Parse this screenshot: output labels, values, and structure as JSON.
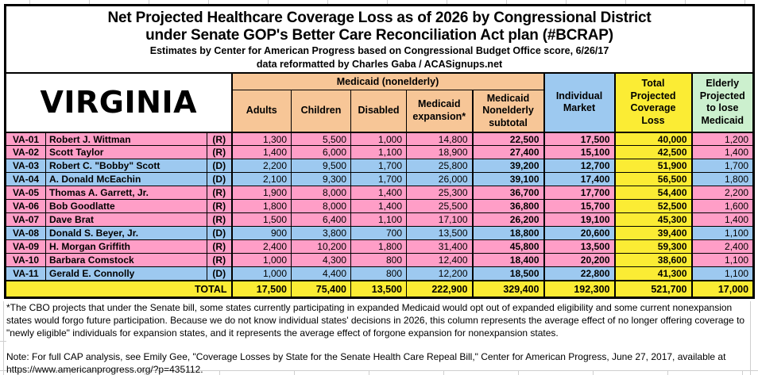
{
  "title": {
    "line1": "Net Projected Healthcare Coverage Loss as of 2026 by Congressional District",
    "line2": "under Senate GOP's Better Care Reconciliation Act plan (#BCRAP)",
    "credit1": "Estimates by Center for American Progress based on Congressional Budget Office score, 6/26/17",
    "credit2": "data reformatted by Charles Gaba / ACASignups.net"
  },
  "state_label": "VIRGINIA",
  "header": {
    "medicaid_group": "Medicaid (nonelderly)",
    "adults": "Adults",
    "children": "Children",
    "disabled": "Disabled",
    "expansion": "Medicaid\nexpansion*",
    "subtotal": "Medicaid\nNonelderly\nsubtotal",
    "individual": "Individual\nMarket",
    "total": "Total\nProjected\nCoverage\nLoss",
    "elderly": "Elderly\nProjected\nto lose\nMedicaid"
  },
  "rows": [
    {
      "district": "VA-01",
      "name": "Robert J. Wittman",
      "party": "(R)",
      "adults": "1,300",
      "children": "5,500",
      "disabled": "1,000",
      "expansion": "14,800",
      "subtotal": "22,500",
      "individual": "17,500",
      "total": "40,000",
      "elderly": "1,200"
    },
    {
      "district": "VA-02",
      "name": "Scott Taylor",
      "party": "(R)",
      "adults": "1,400",
      "children": "6,000",
      "disabled": "1,100",
      "expansion": "18,900",
      "subtotal": "27,400",
      "individual": "15,100",
      "total": "42,500",
      "elderly": "1,400"
    },
    {
      "district": "VA-03",
      "name": "Robert C. \"Bobby\" Scott",
      "party": "(D)",
      "adults": "2,200",
      "children": "9,500",
      "disabled": "1,700",
      "expansion": "25,800",
      "subtotal": "39,200",
      "individual": "12,700",
      "total": "51,900",
      "elderly": "1,700"
    },
    {
      "district": "VA-04",
      "name": "A. Donald McEachin",
      "party": "(D)",
      "adults": "2,100",
      "children": "9,300",
      "disabled": "1,700",
      "expansion": "26,000",
      "subtotal": "39,100",
      "individual": "17,400",
      "total": "56,500",
      "elderly": "1,800"
    },
    {
      "district": "VA-05",
      "name": "Thomas A. Garrett, Jr.",
      "party": "(R)",
      "adults": "1,900",
      "children": "8,000",
      "disabled": "1,400",
      "expansion": "25,300",
      "subtotal": "36,700",
      "individual": "17,700",
      "total": "54,400",
      "elderly": "2,200"
    },
    {
      "district": "VA-06",
      "name": "Bob Goodlatte",
      "party": "(R)",
      "adults": "1,800",
      "children": "8,000",
      "disabled": "1,400",
      "expansion": "25,500",
      "subtotal": "36,800",
      "individual": "15,700",
      "total": "52,500",
      "elderly": "1,600"
    },
    {
      "district": "VA-07",
      "name": "Dave Brat",
      "party": "(R)",
      "adults": "1,500",
      "children": "6,400",
      "disabled": "1,100",
      "expansion": "17,100",
      "subtotal": "26,200",
      "individual": "19,100",
      "total": "45,300",
      "elderly": "1,400"
    },
    {
      "district": "VA-08",
      "name": "Donald S. Beyer, Jr.",
      "party": "(D)",
      "adults": "900",
      "children": "3,800",
      "disabled": "700",
      "expansion": "13,500",
      "subtotal": "18,800",
      "individual": "20,600",
      "total": "39,400",
      "elderly": "1,100"
    },
    {
      "district": "VA-09",
      "name": "H. Morgan Griffith",
      "party": "(R)",
      "adults": "2,400",
      "children": "10,200",
      "disabled": "1,800",
      "expansion": "31,400",
      "subtotal": "45,800",
      "individual": "13,500",
      "total": "59,300",
      "elderly": "2,400"
    },
    {
      "district": "VA-10",
      "name": "Barbara Comstock",
      "party": "(R)",
      "adults": "1,000",
      "children": "4,300",
      "disabled": "800",
      "expansion": "12,400",
      "subtotal": "18,400",
      "individual": "20,200",
      "total": "38,600",
      "elderly": "1,100"
    },
    {
      "district": "VA-11",
      "name": "Gerald E. Connolly",
      "party": "(D)",
      "adults": "1,000",
      "children": "4,400",
      "disabled": "800",
      "expansion": "12,200",
      "subtotal": "18,500",
      "individual": "22,800",
      "total": "41,300",
      "elderly": "1,100"
    }
  ],
  "totals": {
    "label": "TOTAL",
    "adults": "17,500",
    "children": "75,400",
    "disabled": "13,500",
    "expansion": "222,900",
    "subtotal": "329,400",
    "individual": "192,300",
    "total": "521,700",
    "elderly": "17,000"
  },
  "footnote": "*The CBO projects that under the Senate bill, some states currently participating in expanded Medicaid would opt out of expanded eligibility and some current nonexpansion states would forgo future participation. Because we do not know individual states' decisions in 2026, this column represents the average effect of no longer offering coverage to \"newly eligible\" individuals for expansion states, and it represents the average effect of forgone expansion for nonexpansion states.",
  "note": "Note: For full CAP analysis, see Emily Gee, \"Coverage Losses by State for the Senate Health Care Repeal Bill,\" Center for American Progress, June 27, 2017, available at https://www.americanprogress.org/?p=435112.",
  "colors": {
    "republican_row": "#FF9EC7",
    "democrat_row": "#9DC9F0",
    "medicaid_header": "#F7C697",
    "individual_header": "#9DC9F0",
    "total_column": "#FBEC34",
    "elderly_header": "#CCF0CE"
  },
  "chart_data": {
    "type": "table",
    "title": "Net Projected Healthcare Coverage Loss as of 2026 by Congressional District under Senate GOP's Better Care Reconciliation Act plan (#BCRAP)",
    "subtitle": "Estimates by Center for American Progress based on Congressional Budget Office score, 6/26/17; data reformatted by Charles Gaba / ACASignups.net",
    "state": "Virginia",
    "columns": [
      "District",
      "Representative",
      "Party",
      "Medicaid (nonelderly) Adults",
      "Medicaid (nonelderly) Children",
      "Medicaid (nonelderly) Disabled",
      "Medicaid expansion",
      "Medicaid Nonelderly subtotal",
      "Individual Market",
      "Total Projected Coverage Loss",
      "Elderly Projected to lose Medicaid"
    ],
    "rows": [
      [
        "VA-01",
        "Robert J. Wittman",
        "R",
        1300,
        5500,
        1000,
        14800,
        22500,
        17500,
        40000,
        1200
      ],
      [
        "VA-02",
        "Scott Taylor",
        "R",
        1400,
        6000,
        1100,
        18900,
        27400,
        15100,
        42500,
        1400
      ],
      [
        "VA-03",
        "Robert C. \"Bobby\" Scott",
        "D",
        2200,
        9500,
        1700,
        25800,
        39200,
        12700,
        51900,
        1700
      ],
      [
        "VA-04",
        "A. Donald McEachin",
        "D",
        2100,
        9300,
        1700,
        26000,
        39100,
        17400,
        56500,
        1800
      ],
      [
        "VA-05",
        "Thomas A. Garrett, Jr.",
        "R",
        1900,
        8000,
        1400,
        25300,
        36700,
        17700,
        54400,
        2200
      ],
      [
        "VA-06",
        "Bob Goodlatte",
        "R",
        1800,
        8000,
        1400,
        25500,
        36800,
        15700,
        52500,
        1600
      ],
      [
        "VA-07",
        "Dave Brat",
        "R",
        1500,
        6400,
        1100,
        17100,
        26200,
        19100,
        45300,
        1400
      ],
      [
        "VA-08",
        "Donald S. Beyer, Jr.",
        "D",
        900,
        3800,
        700,
        13500,
        18800,
        20600,
        39400,
        1100
      ],
      [
        "VA-09",
        "H. Morgan Griffith",
        "R",
        2400,
        10200,
        1800,
        31400,
        45800,
        13500,
        59300,
        2400
      ],
      [
        "VA-10",
        "Barbara Comstock",
        "R",
        1000,
        4300,
        800,
        12400,
        18400,
        20200,
        38600,
        1100
      ],
      [
        "VA-11",
        "Gerald E. Connolly",
        "D",
        1000,
        4400,
        800,
        12200,
        18500,
        22800,
        41300,
        1100
      ]
    ],
    "totals": [
      "TOTAL",
      "",
      "",
      17500,
      75400,
      13500,
      222900,
      329400,
      192300,
      521700,
      17000
    ]
  }
}
